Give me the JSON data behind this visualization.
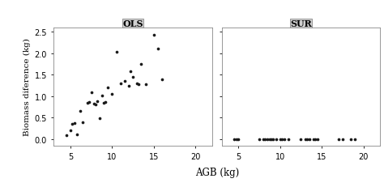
{
  "ols_x": [
    4.5,
    5.0,
    5.2,
    5.5,
    5.8,
    6.2,
    6.5,
    7.0,
    7.2,
    7.5,
    7.8,
    8.0,
    8.2,
    8.5,
    8.8,
    9.0,
    9.2,
    9.5,
    10.0,
    10.5,
    11.0,
    11.5,
    12.0,
    12.2,
    12.5,
    13.0,
    13.2,
    13.5,
    14.0,
    15.0,
    15.5,
    16.0
  ],
  "ols_y": [
    0.1,
    0.2,
    0.35,
    0.38,
    0.12,
    0.65,
    0.4,
    0.85,
    0.86,
    1.1,
    0.83,
    0.8,
    0.88,
    0.48,
    1.02,
    0.85,
    0.87,
    1.2,
    1.05,
    2.04,
    1.3,
    1.35,
    1.25,
    1.58,
    1.45,
    1.3,
    1.28,
    1.75,
    1.27,
    2.42,
    2.1,
    1.4
  ],
  "sur_x": [
    4.5,
    4.8,
    5.0,
    7.5,
    8.0,
    8.2,
    8.5,
    8.8,
    9.0,
    9.2,
    9.5,
    10.0,
    10.2,
    10.5,
    11.0,
    12.5,
    13.0,
    13.2,
    13.5,
    14.0,
    14.2,
    14.5,
    17.0,
    17.5,
    18.5,
    19.0
  ],
  "sur_y": [
    0.0,
    0.0,
    0.0,
    0.0,
    0.0,
    0.0,
    0.0,
    0.0,
    0.0,
    0.0,
    0.0,
    0.0,
    0.0,
    0.0,
    0.0,
    0.0,
    0.0,
    0.0,
    0.0,
    0.0,
    0.0,
    0.0,
    0.0,
    0.0,
    0.0,
    0.0
  ],
  "xlabel": "AGB (kg)",
  "ylabel": "Biomass diference (kg)",
  "title_ols": "OLS",
  "title_sur": "SUR",
  "xlim": [
    3,
    22
  ],
  "ylim": [
    -0.15,
    2.6
  ],
  "xticks": [
    5,
    10,
    15,
    20
  ],
  "yticks": [
    0.0,
    0.5,
    1.0,
    1.5,
    2.0,
    2.5
  ],
  "dot_color": "#1a1a1a",
  "dot_size": 7,
  "bg_color": "#ffffff",
  "plot_bg": "#ffffff",
  "header_color": "#d0d0d0",
  "header_text_color": "#1a1a1a",
  "spine_color": "#888888"
}
